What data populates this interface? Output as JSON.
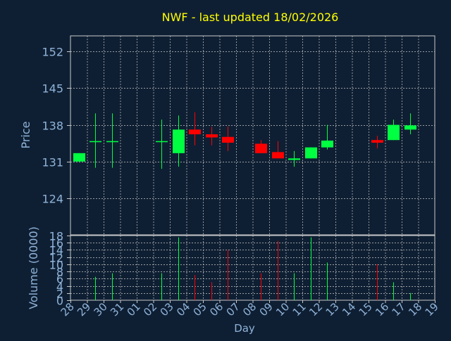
{
  "title": "NWF - last updated 18/02/2026",
  "colors": {
    "background": "#0f1f33",
    "title": "#ffff00",
    "axis_text": "#8fb3d9",
    "grid": "#c8c8c8",
    "up": "#00ff40",
    "down": "#ff0000",
    "plot_border": "#c8c8c8"
  },
  "chart_data": [
    {
      "type": "candlestick",
      "ylabel": "Price",
      "ylim": [
        117,
        155
      ],
      "yticks": [
        124,
        131,
        138,
        145,
        152
      ],
      "grid": true,
      "candles": [
        {
          "x": 0.5,
          "open": 131.0,
          "close": 132.6,
          "high": 132.6,
          "low": 131.0
        },
        {
          "x": 1.5,
          "open": 134.9,
          "close": 134.9,
          "high": 140.2,
          "low": 129.8
        },
        {
          "x": 2.5,
          "open": 134.9,
          "close": 134.9,
          "high": 140.2,
          "low": 129.8
        },
        {
          "x": 5.5,
          "open": 134.9,
          "close": 134.9,
          "high": 139.0,
          "low": 129.6
        },
        {
          "x": 6.5,
          "open": 132.6,
          "close": 137.1,
          "high": 139.8,
          "low": 130.0
        },
        {
          "x": 7.5,
          "open": 137.1,
          "close": 136.2,
          "high": 140.4,
          "low": 134.1
        },
        {
          "x": 8.5,
          "open": 136.2,
          "close": 135.6,
          "high": 137.6,
          "low": 134.1
        },
        {
          "x": 9.5,
          "open": 135.7,
          "close": 134.6,
          "high": 137.7,
          "low": 133.0
        },
        {
          "x": 11.5,
          "open": 134.4,
          "close": 132.6,
          "high": 135.1,
          "low": 132.6
        },
        {
          "x": 12.5,
          "open": 132.8,
          "close": 131.6,
          "high": 134.9,
          "low": 131.6
        },
        {
          "x": 13.5,
          "open": 131.3,
          "close": 131.6,
          "high": 133.0,
          "low": 130.0
        },
        {
          "x": 14.5,
          "open": 131.6,
          "close": 133.7,
          "high": 133.7,
          "low": 131.6
        },
        {
          "x": 15.5,
          "open": 133.7,
          "close": 135.0,
          "high": 138.0,
          "low": 133.3
        },
        {
          "x": 18.5,
          "open": 135.1,
          "close": 134.6,
          "high": 135.9,
          "low": 133.5
        },
        {
          "x": 19.5,
          "open": 135.1,
          "close": 138.0,
          "high": 139.0,
          "low": 135.1
        },
        {
          "x": 20.5,
          "open": 137.1,
          "close": 137.9,
          "high": 140.2,
          "low": 136.2
        }
      ]
    },
    {
      "type": "bar",
      "ylabel": "Volume (0000)",
      "xlabel": "Day",
      "ylim": [
        0,
        18
      ],
      "yticks": [
        0,
        2,
        4,
        6,
        8,
        10,
        12,
        14,
        16,
        18
      ],
      "ytick_labels": [
        "0",
        "2",
        "4",
        "6",
        "8",
        "10",
        "12",
        "14",
        "16",
        "18"
      ],
      "grid": true,
      "categories": [
        "28",
        "29",
        "30",
        "31",
        "01",
        "02",
        "03",
        "04",
        "05",
        "06",
        "07",
        "08",
        "09",
        "10",
        "11",
        "12",
        "13",
        "14",
        "15",
        "16",
        "17",
        "18",
        "19"
      ],
      "bars": [
        {
          "x": 1.5,
          "value": 6.5,
          "dir": "up"
        },
        {
          "x": 2.5,
          "value": 7.5,
          "dir": "up"
        },
        {
          "x": 5.5,
          "value": 7.5,
          "dir": "up"
        },
        {
          "x": 6.5,
          "value": 17.5,
          "dir": "up"
        },
        {
          "x": 7.5,
          "value": 7.0,
          "dir": "down"
        },
        {
          "x": 8.5,
          "value": 5.0,
          "dir": "down"
        },
        {
          "x": 9.5,
          "value": 14.0,
          "dir": "down"
        },
        {
          "x": 11.5,
          "value": 7.5,
          "dir": "down"
        },
        {
          "x": 12.5,
          "value": 16.5,
          "dir": "down"
        },
        {
          "x": 13.5,
          "value": 7.5,
          "dir": "up"
        },
        {
          "x": 14.5,
          "value": 17.5,
          "dir": "up"
        },
        {
          "x": 15.5,
          "value": 10.5,
          "dir": "up"
        },
        {
          "x": 18.5,
          "value": 10.0,
          "dir": "down"
        },
        {
          "x": 19.5,
          "value": 5.0,
          "dir": "up"
        },
        {
          "x": 20.5,
          "value": 2.0,
          "dir": "up"
        }
      ]
    }
  ]
}
